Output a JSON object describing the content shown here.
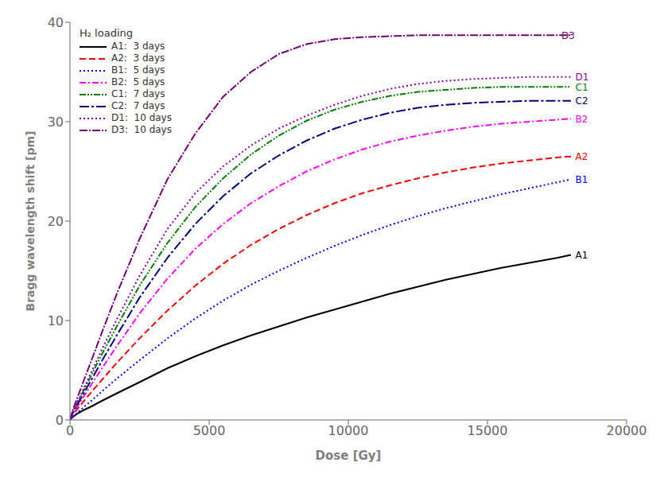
{
  "chart_data": {
    "type": "line",
    "xlabel": "Dose [Gy]",
    "ylabel": "Bragg wavelength shift [pm]",
    "xlim": [
      0,
      20000
    ],
    "ylim": [
      0,
      40
    ],
    "xticks": [
      0,
      5000,
      10000,
      15000,
      20000
    ],
    "yticks": [
      0,
      10,
      20,
      30,
      40
    ],
    "grid": false,
    "legend": "upper left",
    "legend_title": "H₂ loading",
    "series": [
      {
        "name": "A1:  3 days",
        "color": "#000000",
        "line_style": "solid",
        "x": [
          0,
          100,
          300,
          500,
          800,
          1200,
          1700,
          2500,
          3500,
          4500,
          5500,
          6500,
          7500,
          8500,
          9500,
          10500,
          11500,
          12500,
          13500,
          14500,
          15500,
          16500,
          17500,
          18000
        ],
        "values": [
          0,
          0.3,
          0.7,
          1.0,
          1.4,
          2.0,
          2.7,
          3.8,
          5.2,
          6.4,
          7.5,
          8.5,
          9.4,
          10.3,
          11.1,
          11.9,
          12.7,
          13.4,
          14.1,
          14.7,
          15.3,
          15.8,
          16.3,
          16.6
        ]
      },
      {
        "name": "A2:  3 days",
        "color": "#ff0000",
        "line_style": "dashed",
        "x": [
          0,
          100,
          300,
          500,
          800,
          1200,
          1700,
          2500,
          3500,
          4500,
          5500,
          6500,
          7500,
          8500,
          9500,
          10500,
          11500,
          12500,
          13500,
          14500,
          15500,
          16500,
          17500,
          18000
        ],
        "values": [
          0,
          0.5,
          1.2,
          1.9,
          2.9,
          4.2,
          5.8,
          8.2,
          11.0,
          13.5,
          15.7,
          17.6,
          19.2,
          20.6,
          21.8,
          22.8,
          23.6,
          24.3,
          24.9,
          25.4,
          25.8,
          26.1,
          26.4,
          26.5
        ]
      },
      {
        "name": "B1:  5 days",
        "color": "#0000ff",
        "line_style": "dotted",
        "x": [
          0,
          100,
          300,
          500,
          800,
          1200,
          1700,
          2500,
          3500,
          4500,
          5500,
          6500,
          7500,
          8500,
          9500,
          10500,
          11500,
          12500,
          13500,
          14500,
          15500,
          16500,
          17500,
          18000
        ],
        "values": [
          0,
          0.3,
          0.8,
          1.3,
          2.0,
          3.0,
          4.2,
          6.0,
          8.2,
          10.2,
          12.0,
          13.6,
          15.0,
          16.3,
          17.5,
          18.6,
          19.6,
          20.5,
          21.3,
          22.0,
          22.7,
          23.3,
          23.9,
          24.2
        ]
      },
      {
        "name": "B2:  5 days",
        "color": "#ff00ff",
        "line_style": "dashdot",
        "x": [
          0,
          100,
          300,
          500,
          800,
          1200,
          1700,
          2500,
          3500,
          4500,
          5500,
          6500,
          7500,
          8500,
          9500,
          10500,
          11500,
          12500,
          13500,
          14500,
          15500,
          16500,
          17500,
          18000
        ],
        "values": [
          0,
          0.6,
          1.5,
          2.4,
          3.7,
          5.4,
          7.5,
          10.7,
          14.2,
          17.2,
          19.7,
          21.8,
          23.5,
          25.0,
          26.2,
          27.2,
          28.0,
          28.6,
          29.1,
          29.5,
          29.8,
          30.0,
          30.2,
          30.3
        ]
      },
      {
        "name": "C1:  7 days",
        "color": "#008000",
        "line_style": "dashdotdot",
        "x": [
          0,
          100,
          300,
          500,
          800,
          1200,
          1700,
          2500,
          3500,
          4500,
          5500,
          6500,
          7500,
          8500,
          9500,
          10500,
          11500,
          12500,
          13500,
          14500,
          15500,
          16500,
          17500,
          18000
        ],
        "values": [
          0,
          0.8,
          1.9,
          3.0,
          4.7,
          6.9,
          9.5,
          13.5,
          17.8,
          21.4,
          24.3,
          26.7,
          28.6,
          30.1,
          31.2,
          32.0,
          32.6,
          33.0,
          33.2,
          33.4,
          33.5,
          33.5,
          33.5,
          33.5
        ]
      },
      {
        "name": "C2:  7 days",
        "color": "#000080",
        "line_style": "longdashdot",
        "x": [
          0,
          100,
          300,
          500,
          800,
          1200,
          1700,
          2500,
          3500,
          4500,
          5500,
          6500,
          7500,
          8500,
          9500,
          10500,
          11500,
          12500,
          13500,
          14500,
          15500,
          16500,
          17500,
          18000
        ],
        "values": [
          0,
          0.7,
          1.7,
          2.7,
          4.2,
          6.2,
          8.6,
          12.3,
          16.3,
          19.7,
          22.5,
          24.8,
          26.6,
          28.1,
          29.3,
          30.2,
          30.9,
          31.4,
          31.7,
          31.9,
          32.0,
          32.1,
          32.1,
          32.1
        ]
      },
      {
        "name": "D1:  10 days",
        "color": "#8800aa",
        "line_style": "dotted",
        "x": [
          0,
          100,
          300,
          500,
          800,
          1200,
          1700,
          2500,
          3500,
          4500,
          5500,
          6500,
          7500,
          8500,
          9500,
          10500,
          11500,
          12500,
          13500,
          14500,
          15500,
          16500,
          17500,
          18000
        ],
        "values": [
          0,
          0.8,
          2.0,
          3.2,
          5.0,
          7.4,
          10.2,
          14.5,
          19.2,
          22.8,
          25.5,
          27.6,
          29.3,
          30.6,
          31.7,
          32.6,
          33.3,
          33.8,
          34.1,
          34.3,
          34.4,
          34.5,
          34.5,
          34.5
        ]
      },
      {
        "name": "D3:  10 days",
        "color": "#770077",
        "line_style": "dashdotlong",
        "x": [
          0,
          100,
          300,
          500,
          800,
          1200,
          1700,
          2500,
          3500,
          4500,
          5500,
          6500,
          7500,
          8500,
          9500,
          10500,
          11500,
          12500,
          13000,
          13500,
          14000,
          14500,
          15000,
          15500,
          16000,
          16500,
          17000,
          17500,
          18000
        ],
        "values": [
          0,
          1.0,
          2.5,
          4.0,
          6.2,
          9.2,
          12.8,
          18.2,
          24.2,
          28.8,
          32.5,
          35.0,
          36.8,
          37.8,
          38.3,
          38.5,
          38.6,
          38.7,
          38.7,
          38.7,
          38.7,
          38.7,
          38.7,
          38.7,
          38.7,
          38.7,
          38.7,
          38.7,
          38.7
        ]
      }
    ],
    "annotations": [
      {
        "text": "A1",
        "x": 18100,
        "y": 16.6,
        "color": "#000000"
      },
      {
        "text": "A2",
        "x": 18100,
        "y": 26.5,
        "color": "#ff0000"
      },
      {
        "text": "B1",
        "x": 18100,
        "y": 24.2,
        "color": "#0000ff"
      },
      {
        "text": "B2",
        "x": 18100,
        "y": 30.3,
        "color": "#ff00ff"
      },
      {
        "text": "C1",
        "x": 18100,
        "y": 33.5,
        "color": "#008000"
      },
      {
        "text": "C2",
        "x": 18100,
        "y": 32.1,
        "color": "#000080"
      },
      {
        "text": "D1",
        "x": 18100,
        "y": 34.5,
        "color": "#8800aa"
      },
      {
        "text": "D3",
        "x": 17600,
        "y": 38.7,
        "color": "#770077"
      }
    ]
  }
}
